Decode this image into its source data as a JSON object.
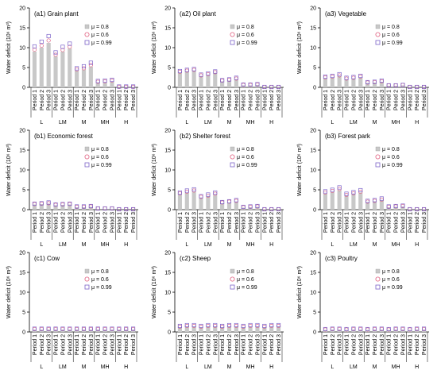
{
  "chart_data": [
    {
      "type": "bar",
      "title": "(a1) Grain plant",
      "ylabel": "Water deficit (10⁶ m³)",
      "ylim": [
        0,
        20
      ],
      "yticks": [
        0,
        5,
        10,
        15,
        20
      ],
      "categories": [
        "Period 1",
        "Period 2",
        "Period 3",
        "Period 1",
        "Period 2",
        "Period 3",
        "Period 1",
        "Period 2",
        "Period 3",
        "Period 1",
        "Period 2",
        "Period 3",
        "Period 1",
        "Period 2",
        "Period 3"
      ],
      "groups": [
        "L",
        "LM",
        "M",
        "MH",
        "H"
      ],
      "series": [
        {
          "name": "μ = 0.8",
          "values": [
            9.0,
            10.0,
            11.2,
            7.8,
            9.0,
            9.8,
            4.2,
            4.5,
            5.2,
            1.2,
            1.3,
            1.5,
            0.1,
            0.1,
            0.1
          ]
        },
        {
          "name": "μ = 0.6",
          "values": [
            9.5,
            10.5,
            11.8,
            8.2,
            9.4,
            10.2,
            4.5,
            4.8,
            5.6,
            1.4,
            1.5,
            1.7,
            0.1,
            0.1,
            0.1
          ]
        },
        {
          "name": "μ = 0.99",
          "values": [
            10.3,
            11.5,
            12.9,
            8.8,
            10.2,
            11.0,
            4.8,
            5.3,
            6.2,
            1.6,
            1.7,
            1.9,
            0.2,
            0.2,
            0.2
          ]
        }
      ]
    },
    {
      "type": "bar",
      "title": "(a2) Oil plant",
      "ylabel": "Water deficit (10⁶ m³)",
      "ylim": [
        0,
        20
      ],
      "yticks": [
        0,
        5,
        10,
        15,
        20
      ],
      "categories": [
        "Period 1",
        "Period 2",
        "Period 3",
        "Period 1",
        "Period 2",
        "Period 3",
        "Period 1",
        "Period 2",
        "Period 3",
        "Period 1",
        "Period 2",
        "Period 3",
        "Period 1",
        "Period 2",
        "Period 3"
      ],
      "groups": [
        "L",
        "LM",
        "M",
        "MH",
        "H"
      ],
      "series": [
        {
          "name": "μ = 0.8",
          "values": [
            3.6,
            3.9,
            4.1,
            2.8,
            3.0,
            3.5,
            1.5,
            1.7,
            2.0,
            0.5,
            0.5,
            0.6,
            0.1,
            0.1,
            0.1
          ]
        },
        {
          "name": "μ = 0.6",
          "values": [
            3.9,
            4.2,
            4.4,
            3.0,
            3.3,
            3.8,
            1.7,
            1.9,
            2.2,
            0.6,
            0.6,
            0.7,
            0.1,
            0.1,
            0.1
          ]
        },
        {
          "name": "μ = 0.99",
          "values": [
            4.1,
            4.4,
            4.6,
            3.2,
            3.5,
            4.0,
            1.8,
            2.0,
            2.4,
            0.7,
            0.7,
            0.8,
            0.1,
            0.1,
            0.1
          ]
        }
      ]
    },
    {
      "type": "bar",
      "title": "(a3) Vegetable",
      "ylabel": "Water deficit (10⁶ m³)",
      "ylim": [
        0,
        20
      ],
      "yticks": [
        0,
        5,
        10,
        15,
        20
      ],
      "categories": [
        "Period 1",
        "Period 2",
        "Period 3",
        "Period 1",
        "Period 2",
        "Period 3",
        "Period 1",
        "Period 2",
        "Period 3",
        "Period 1",
        "Period 2",
        "Period 3",
        "Period 1",
        "Period 2",
        "Period 3"
      ],
      "groups": [
        "L",
        "LM",
        "M",
        "MH",
        "H"
      ],
      "series": [
        {
          "name": "μ = 0.8",
          "values": [
            2.3,
            2.5,
            2.8,
            2.0,
            2.2,
            2.5,
            1.1,
            1.2,
            1.4,
            0.4,
            0.4,
            0.5,
            0.1,
            0.1,
            0.1
          ]
        },
        {
          "name": "μ = 0.6",
          "values": [
            2.5,
            2.7,
            3.0,
            2.2,
            2.4,
            2.7,
            1.2,
            1.3,
            1.5,
            0.5,
            0.5,
            0.6,
            0.1,
            0.1,
            0.1
          ]
        },
        {
          "name": "μ = 0.99",
          "values": [
            2.7,
            2.9,
            3.3,
            2.4,
            2.6,
            2.9,
            1.3,
            1.4,
            1.7,
            0.5,
            0.5,
            0.6,
            0.1,
            0.1,
            0.1
          ]
        }
      ]
    },
    {
      "type": "bar",
      "title": "(b1) Economic forest",
      "ylabel": "Water deficit (10⁶ m³)",
      "ylim": [
        0,
        20
      ],
      "yticks": [
        0,
        5,
        10,
        15,
        20
      ],
      "categories": [
        "Period 1",
        "Period 2",
        "Period 3",
        "Period 1",
        "Period 2",
        "Period 3",
        "Period 1",
        "Period 2",
        "Period 3",
        "Period 1",
        "Period 2",
        "Period 3",
        "Period 1",
        "Period 2",
        "Period 3"
      ],
      "groups": [
        "L",
        "LM",
        "M",
        "MH",
        "H"
      ],
      "series": [
        {
          "name": "μ = 0.8",
          "values": [
            1.3,
            1.4,
            1.5,
            1.1,
            1.2,
            1.3,
            0.6,
            0.6,
            0.7,
            0.2,
            0.2,
            0.2,
            0.0,
            0.0,
            0.0
          ]
        },
        {
          "name": "μ = 0.6",
          "values": [
            1.4,
            1.5,
            1.6,
            1.2,
            1.3,
            1.4,
            0.7,
            0.7,
            0.8,
            0.3,
            0.3,
            0.3,
            0.1,
            0.1,
            0.1
          ]
        },
        {
          "name": "μ = 0.99",
          "values": [
            1.5,
            1.6,
            1.8,
            1.3,
            1.4,
            1.5,
            0.8,
            0.8,
            0.9,
            0.3,
            0.3,
            0.3,
            0.1,
            0.1,
            0.1
          ]
        }
      ]
    },
    {
      "type": "bar",
      "title": "(b2) Shelter forest",
      "ylabel": "Water deficit (10⁶ m³)",
      "ylim": [
        0,
        20
      ],
      "yticks": [
        0,
        5,
        10,
        15,
        20
      ],
      "categories": [
        "Period 1",
        "Period 2",
        "Period 3",
        "Period 1",
        "Period 2",
        "Period 3",
        "Period 1",
        "Period 2",
        "Period 3",
        "Period 1",
        "Period 2",
        "Period 3",
        "Period 1",
        "Period 2",
        "Period 3"
      ],
      "groups": [
        "L",
        "LM",
        "M",
        "MH",
        "H"
      ],
      "series": [
        {
          "name": "μ = 0.8",
          "values": [
            3.8,
            4.2,
            4.5,
            3.0,
            3.3,
            3.7,
            1.6,
            1.8,
            2.0,
            0.5,
            0.6,
            0.7,
            0.1,
            0.1,
            0.1
          ]
        },
        {
          "name": "μ = 0.6",
          "values": [
            4.1,
            4.5,
            4.8,
            3.2,
            3.5,
            4.0,
            1.8,
            2.0,
            2.2,
            0.6,
            0.7,
            0.8,
            0.1,
            0.1,
            0.1
          ]
        },
        {
          "name": "μ = 0.99",
          "values": [
            4.3,
            4.8,
            5.1,
            3.4,
            3.8,
            4.3,
            1.9,
            2.1,
            2.4,
            0.7,
            0.8,
            0.9,
            0.1,
            0.1,
            0.1
          ]
        }
      ]
    },
    {
      "type": "bar",
      "title": "(b3) Forest park",
      "ylabel": "Water deficit (10⁶ m³)",
      "ylim": [
        0,
        20
      ],
      "yticks": [
        0,
        5,
        10,
        15,
        20
      ],
      "categories": [
        "Period 1",
        "Period 2",
        "Period 3",
        "Period 1",
        "Period 2",
        "Period 3",
        "Period 1",
        "Period 2",
        "Period 3",
        "Period 1",
        "Period 2",
        "Period 3",
        "Period 1",
        "Period 2",
        "Period 3"
      ],
      "groups": [
        "L",
        "LM",
        "M",
        "MH",
        "H"
      ],
      "series": [
        {
          "name": "μ = 0.8",
          "values": [
            4.0,
            4.4,
            4.9,
            3.5,
            3.9,
            4.3,
            1.9,
            2.1,
            2.3,
            0.6,
            0.7,
            0.8,
            0.1,
            0.1,
            0.1
          ]
        },
        {
          "name": "μ = 0.6",
          "values": [
            4.3,
            4.7,
            5.2,
            3.7,
            4.1,
            4.5,
            2.0,
            2.2,
            2.5,
            0.7,
            0.8,
            0.9,
            0.1,
            0.1,
            0.1
          ]
        },
        {
          "name": "μ = 0.99",
          "values": [
            4.6,
            5.0,
            5.6,
            4.0,
            4.4,
            4.9,
            2.2,
            2.4,
            2.8,
            0.8,
            0.9,
            1.0,
            0.1,
            0.1,
            0.1
          ]
        }
      ]
    },
    {
      "type": "bar",
      "title": "(c1) Cow",
      "ylabel": "Water deficit (10⁶ m³)",
      "ylim": [
        0,
        20
      ],
      "yticks": [
        0,
        5,
        10,
        15,
        20
      ],
      "categories": [
        "Period 1",
        "Period 2",
        "Period 3",
        "Period 1",
        "Period 2",
        "Period 3",
        "Period 1",
        "Period 2",
        "Period 3",
        "Period 1",
        "Period 2",
        "Period 3",
        "Period 1",
        "Period 2",
        "Period 3"
      ],
      "groups": [
        "L",
        "LM",
        "M",
        "MH",
        "H"
      ],
      "series": [
        {
          "name": "μ = 0.8",
          "values": [
            0.6,
            0.6,
            0.6,
            0.6,
            0.6,
            0.6,
            0.6,
            0.6,
            0.6,
            0.6,
            0.6,
            0.6,
            0.6,
            0.6,
            0.6
          ]
        },
        {
          "name": "μ = 0.6",
          "values": [
            0.7,
            0.7,
            0.7,
            0.7,
            0.7,
            0.7,
            0.7,
            0.7,
            0.7,
            0.7,
            0.7,
            0.7,
            0.7,
            0.7,
            0.7
          ]
        },
        {
          "name": "μ = 0.99",
          "values": [
            0.8,
            0.8,
            0.8,
            0.8,
            0.8,
            0.8,
            0.8,
            0.8,
            0.8,
            0.8,
            0.8,
            0.8,
            0.8,
            0.8,
            0.8
          ]
        }
      ]
    },
    {
      "type": "bar",
      "title": "(c2) Sheep",
      "ylabel": "Water deficit (10⁶ m³)",
      "ylim": [
        0,
        20
      ],
      "yticks": [
        0,
        5,
        10,
        15,
        20
      ],
      "categories": [
        "Period 1",
        "Period 2",
        "Period 3",
        "Period 1",
        "Period 2",
        "Period 3",
        "Period 1",
        "Period 2",
        "Period 3",
        "Period 1",
        "Period 2",
        "Period 3",
        "Period 1",
        "Period 2",
        "Period 3"
      ],
      "groups": [
        "L",
        "LM",
        "M",
        "MH",
        "H"
      ],
      "series": [
        {
          "name": "μ = 0.8",
          "values": [
            1.2,
            1.4,
            1.4,
            1.2,
            1.4,
            1.4,
            1.2,
            1.4,
            1.4,
            1.2,
            1.4,
            1.4,
            1.2,
            1.4,
            1.4
          ]
        },
        {
          "name": "μ = 0.6",
          "values": [
            1.3,
            1.5,
            1.5,
            1.3,
            1.5,
            1.5,
            1.3,
            1.5,
            1.5,
            1.3,
            1.5,
            1.5,
            1.3,
            1.5,
            1.5
          ]
        },
        {
          "name": "μ = 0.99",
          "values": [
            1.5,
            1.7,
            1.7,
            1.5,
            1.7,
            1.7,
            1.5,
            1.7,
            1.7,
            1.5,
            1.7,
            1.7,
            1.5,
            1.7,
            1.7
          ]
        }
      ]
    },
    {
      "type": "bar",
      "title": "(c3) Poultry",
      "ylabel": "Water deficit (10⁶ m³)",
      "ylim": [
        0,
        20
      ],
      "yticks": [
        0,
        5,
        10,
        15,
        20
      ],
      "categories": [
        "Period 1",
        "Period 2",
        "Period 3",
        "Period 1",
        "Period 2",
        "Period 3",
        "Period 1",
        "Period 2",
        "Period 3",
        "Period 1",
        "Period 2",
        "Period 3",
        "Period 1",
        "Period 2",
        "Period 3"
      ],
      "groups": [
        "L",
        "LM",
        "M",
        "MH",
        "H"
      ],
      "series": [
        {
          "name": "μ = 0.8",
          "values": [
            0.5,
            0.6,
            0.6,
            0.5,
            0.6,
            0.6,
            0.5,
            0.6,
            0.6,
            0.5,
            0.6,
            0.6,
            0.5,
            0.6,
            0.6
          ]
        },
        {
          "name": "μ = 0.6",
          "values": [
            0.6,
            0.7,
            0.7,
            0.6,
            0.7,
            0.7,
            0.6,
            0.7,
            0.7,
            0.6,
            0.7,
            0.7,
            0.6,
            0.7,
            0.7
          ]
        },
        {
          "name": "μ = 0.99",
          "values": [
            0.7,
            0.8,
            0.8,
            0.7,
            0.8,
            0.8,
            0.7,
            0.8,
            0.8,
            0.7,
            0.8,
            0.8,
            0.7,
            0.8,
            0.8
          ]
        }
      ]
    }
  ],
  "colors": {
    "bar": "#c8c8c8",
    "mu06_marker": "#e06080",
    "mu099_marker": "#7a62c8",
    "axis": "#000000"
  }
}
